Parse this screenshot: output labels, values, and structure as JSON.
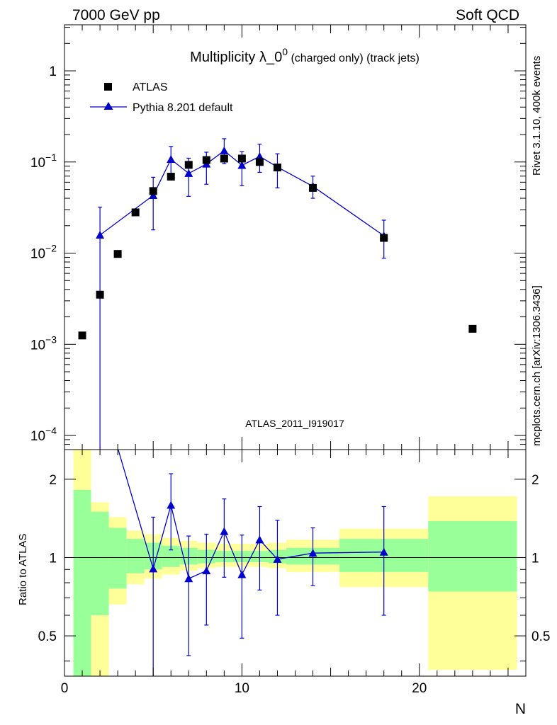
{
  "header": {
    "left": "7000 GeV pp",
    "right": "Soft QCD"
  },
  "side": {
    "rivet": "Rivet 3.1.10,  400k events",
    "mcplots": "mcplots.cern.ch [arXiv:1306.3436]"
  },
  "chart_data": {
    "title": {
      "main": "Multiplicity λ_0",
      "sup": "0",
      "sub": " (charged only) (track jets)"
    },
    "analysis_label": "ATLAS_2011_I919017",
    "xlabel": "N",
    "legend": {
      "placement": "top-left",
      "entries": [
        "ATLAS",
        "Pythia 8.201 default"
      ]
    },
    "colors": {
      "data": "#000000",
      "mc": "#0000cc",
      "band_inner": "#99ff99",
      "band_outer": "#ffff99"
    },
    "main": {
      "type": "scatter",
      "yscale": "log",
      "xlim": [
        0,
        26
      ],
      "ylim": [
        7e-05,
        3.2
      ],
      "yticks": [
        {
          "v": 1,
          "m": "1",
          "e": ""
        },
        {
          "v": 0.1,
          "m": "10",
          "e": "−1"
        },
        {
          "v": 0.01,
          "m": "10",
          "e": "−2"
        },
        {
          "v": 0.001,
          "m": "10",
          "e": "−3"
        },
        {
          "v": 0.0001,
          "m": "10",
          "e": "−4"
        }
      ],
      "series": [
        {
          "name": "ATLAS",
          "marker": "square",
          "x": [
            1,
            2,
            3,
            4,
            5,
            6,
            7,
            8,
            9,
            10,
            11,
            12,
            14,
            18,
            23
          ],
          "y": [
            0.00125,
            0.0035,
            0.0098,
            0.028,
            0.048,
            0.069,
            0.093,
            0.105,
            0.109,
            0.109,
            0.1,
            0.087,
            0.052,
            0.0147,
            0.00148
          ]
        },
        {
          "name": "Pythia 8.201 default",
          "marker": "triangle",
          "x": [
            2,
            5,
            6,
            7,
            8,
            9,
            10,
            11,
            12,
            14,
            18
          ],
          "y": [
            0.0158,
            0.043,
            0.107,
            0.075,
            0.095,
            0.133,
            0.092,
            0.115,
            0.088,
            0.054,
            0.0155
          ],
          "ylow": [
            1e-05,
            0.018,
            0.075,
            0.042,
            0.057,
            0.096,
            0.055,
            0.077,
            0.052,
            0.04,
            0.0088
          ],
          "yhigh": [
            0.032,
            0.068,
            0.148,
            0.11,
            0.128,
            0.18,
            0.13,
            0.157,
            0.123,
            0.07,
            0.023
          ]
        }
      ]
    },
    "ratio": {
      "type": "line",
      "ylabel": "Ratio to ATLAS",
      "yscale": "log",
      "ylim": [
        0.35,
        2.6
      ],
      "yticks": [
        {
          "v": 2,
          "label": "2"
        },
        {
          "v": 1,
          "label": "1"
        },
        {
          "v": 0.5,
          "label": "0.5"
        }
      ],
      "xticks": [
        0,
        10,
        20
      ],
      "reference": 1,
      "bands": [
        {
          "x0": 0.5,
          "x1": 1.5,
          "outer": [
            0.3,
            2.6
          ],
          "inner": [
            0.3,
            1.82
          ]
        },
        {
          "x0": 1.5,
          "x1": 2.5,
          "outer": [
            0.3,
            1.63
          ],
          "inner": [
            0.6,
            1.5
          ]
        },
        {
          "x0": 2.5,
          "x1": 3.5,
          "outer": [
            0.66,
            1.43
          ],
          "inner": [
            0.76,
            1.3
          ]
        },
        {
          "x0": 3.5,
          "x1": 4.5,
          "outer": [
            0.79,
            1.27
          ],
          "inner": [
            0.87,
            1.18
          ]
        },
        {
          "x0": 4.5,
          "x1": 5.5,
          "outer": [
            0.83,
            1.23
          ],
          "inner": [
            0.9,
            1.14
          ]
        },
        {
          "x0": 5.5,
          "x1": 6.5,
          "outer": [
            0.86,
            1.19
          ],
          "inner": [
            0.92,
            1.11
          ]
        },
        {
          "x0": 6.5,
          "x1": 7.5,
          "outer": [
            0.89,
            1.16
          ],
          "inner": [
            0.94,
            1.09
          ]
        },
        {
          "x0": 7.5,
          "x1": 8.5,
          "outer": [
            0.91,
            1.14
          ],
          "inner": [
            0.95,
            1.07
          ]
        },
        {
          "x0": 8.5,
          "x1": 9.5,
          "outer": [
            0.92,
            1.13
          ],
          "inner": [
            0.96,
            1.06
          ]
        },
        {
          "x0": 9.5,
          "x1": 10.5,
          "outer": [
            0.92,
            1.13
          ],
          "inner": [
            0.96,
            1.06
          ]
        },
        {
          "x0": 10.5,
          "x1": 11.5,
          "outer": [
            0.92,
            1.13
          ],
          "inner": [
            0.96,
            1.06
          ]
        },
        {
          "x0": 11.5,
          "x1": 12.5,
          "outer": [
            0.91,
            1.14
          ],
          "inner": [
            0.95,
            1.07
          ]
        },
        {
          "x0": 12.5,
          "x1": 15.5,
          "outer": [
            0.88,
            1.17
          ],
          "inner": [
            0.94,
            1.09
          ]
        },
        {
          "x0": 15.5,
          "x1": 20.5,
          "outer": [
            0.77,
            1.29
          ],
          "inner": [
            0.88,
            1.18
          ]
        },
        {
          "x0": 20.5,
          "x1": 25.5,
          "outer": [
            0.37,
            1.72
          ],
          "inner": [
            0.74,
            1.38
          ]
        }
      ],
      "series": [
        {
          "name": "Pythia 8.201 default",
          "x": [
            2,
            5,
            6,
            7,
            8,
            9,
            10,
            11,
            12,
            14,
            18
          ],
          "y": [
            4.5,
            0.905,
            1.59,
            0.83,
            0.89,
            1.26,
            0.86,
            1.17,
            0.985,
            1.04,
            1.05
          ],
          "ylow": [
            null,
            0.3,
            1.07,
            0.42,
            0.55,
            0.84,
            0.49,
            0.75,
            0.6,
            0.78,
            0.6
          ],
          "yhigh": [
            null,
            1.43,
            2.1,
            1.21,
            1.23,
            1.68,
            1.22,
            1.57,
            1.39,
            1.3,
            1.57
          ]
        }
      ]
    }
  }
}
